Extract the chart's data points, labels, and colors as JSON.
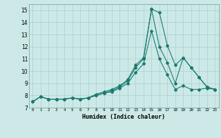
{
  "title": "",
  "xlabel": "Humidex (Indice chaleur)",
  "x_values": [
    0,
    1,
    2,
    3,
    4,
    5,
    6,
    7,
    8,
    9,
    10,
    11,
    12,
    13,
    14,
    15,
    16,
    17,
    18,
    19,
    20,
    21,
    22,
    23
  ],
  "line1": [
    7.5,
    7.9,
    7.7,
    7.7,
    7.7,
    7.8,
    7.7,
    7.8,
    8.1,
    8.3,
    8.5,
    8.8,
    9.3,
    10.5,
    11.1,
    15.1,
    14.8,
    12.1,
    10.5,
    11.1,
    10.3,
    9.5,
    8.7,
    8.5
  ],
  "line2": [
    7.5,
    7.9,
    7.7,
    7.7,
    7.7,
    7.8,
    7.7,
    7.8,
    8.0,
    8.2,
    8.4,
    8.7,
    9.2,
    10.3,
    11.0,
    15.1,
    12.0,
    10.7,
    9.0,
    11.1,
    10.3,
    9.5,
    8.7,
    8.5
  ],
  "line3": [
    7.5,
    7.9,
    7.7,
    7.7,
    7.7,
    7.8,
    7.7,
    7.8,
    8.0,
    8.2,
    8.3,
    8.6,
    9.0,
    9.9,
    10.6,
    13.3,
    11.0,
    9.7,
    8.5,
    8.8,
    8.5,
    8.5,
    8.6,
    8.5
  ],
  "bg_color": "#cce9e7",
  "grid_color": "#aacfcc",
  "line_color": "#1a7a6e",
  "ylim": [
    7,
    15.5
  ],
  "yticks": [
    7,
    8,
    9,
    10,
    11,
    12,
    13,
    14,
    15
  ],
  "xlim": [
    -0.5,
    23.5
  ],
  "figsize": [
    3.2,
    2.0
  ],
  "dpi": 100
}
